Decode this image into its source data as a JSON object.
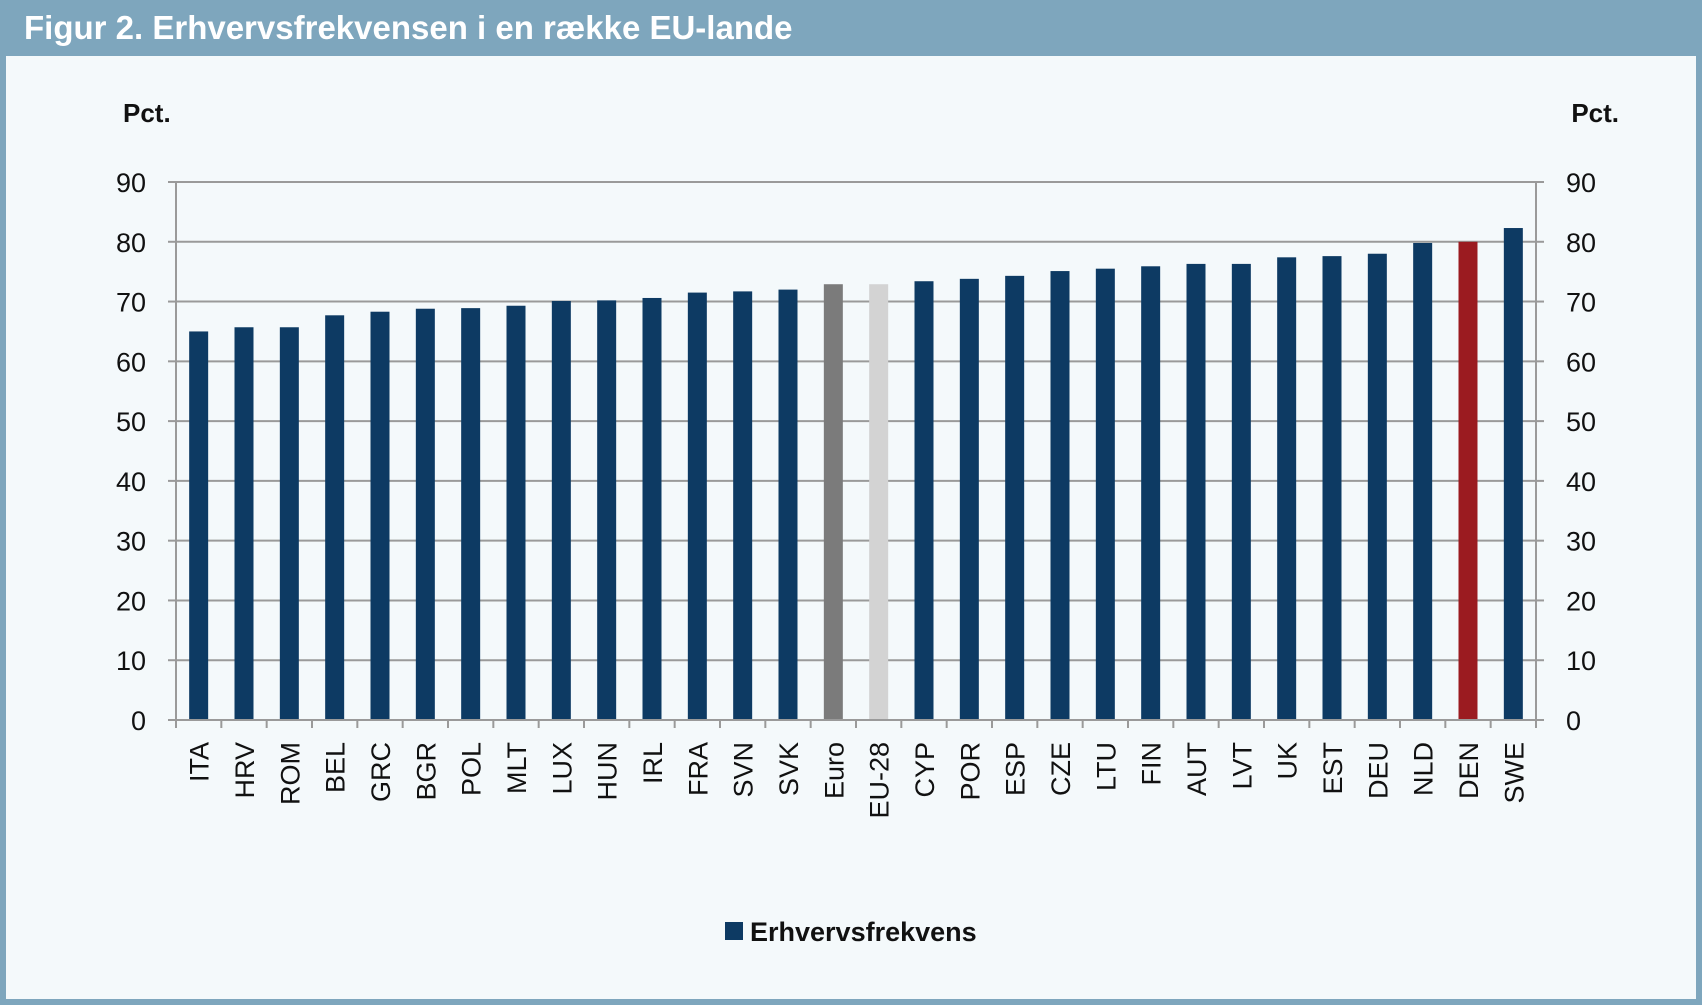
{
  "title": "Figur 2. Erhvervsfrekvensen i en række EU-lande",
  "chart_data": {
    "type": "bar",
    "title": "Figur 2. Erhvervsfrekvensen i en række EU-lande",
    "ylabel_left": "Pct.",
    "ylabel_right": "Pct.",
    "ylim": [
      0,
      90
    ],
    "yticks": [
      "0",
      "10",
      "20",
      "30",
      "40",
      "50",
      "60",
      "70",
      "80",
      "90"
    ],
    "grid": true,
    "legend_position": "bottom",
    "categories": [
      "ITA",
      "HRV",
      "ROM",
      "BEL",
      "GRC",
      "BGR",
      "POL",
      "MLT",
      "LUX",
      "HUN",
      "IRL",
      "FRA",
      "SVN",
      "SVK",
      "Euro",
      "EU-28",
      "CYP",
      "POR",
      "ESP",
      "CZE",
      "LTU",
      "FIN",
      "AUT",
      "LVT",
      "UK",
      "EST",
      "DEU",
      "NLD",
      "DEN",
      "SWE"
    ],
    "series": [
      {
        "name": "Erhvervsfrekvens",
        "color": "#0d3a63",
        "values": [
          65.0,
          65.7,
          65.7,
          67.7,
          68.3,
          68.8,
          68.9,
          69.3,
          70.1,
          70.2,
          70.6,
          71.5,
          71.7,
          72.0,
          72.9,
          72.9,
          73.4,
          73.8,
          74.3,
          75.1,
          75.5,
          75.9,
          76.3,
          76.3,
          77.4,
          77.6,
          78.0,
          79.8,
          80.0,
          82.3
        ]
      }
    ],
    "bar_colors": {
      "Euro": "#7b7b7b",
      "EU-28": "#d3d3d3",
      "DEN": "#9b1b20"
    }
  }
}
